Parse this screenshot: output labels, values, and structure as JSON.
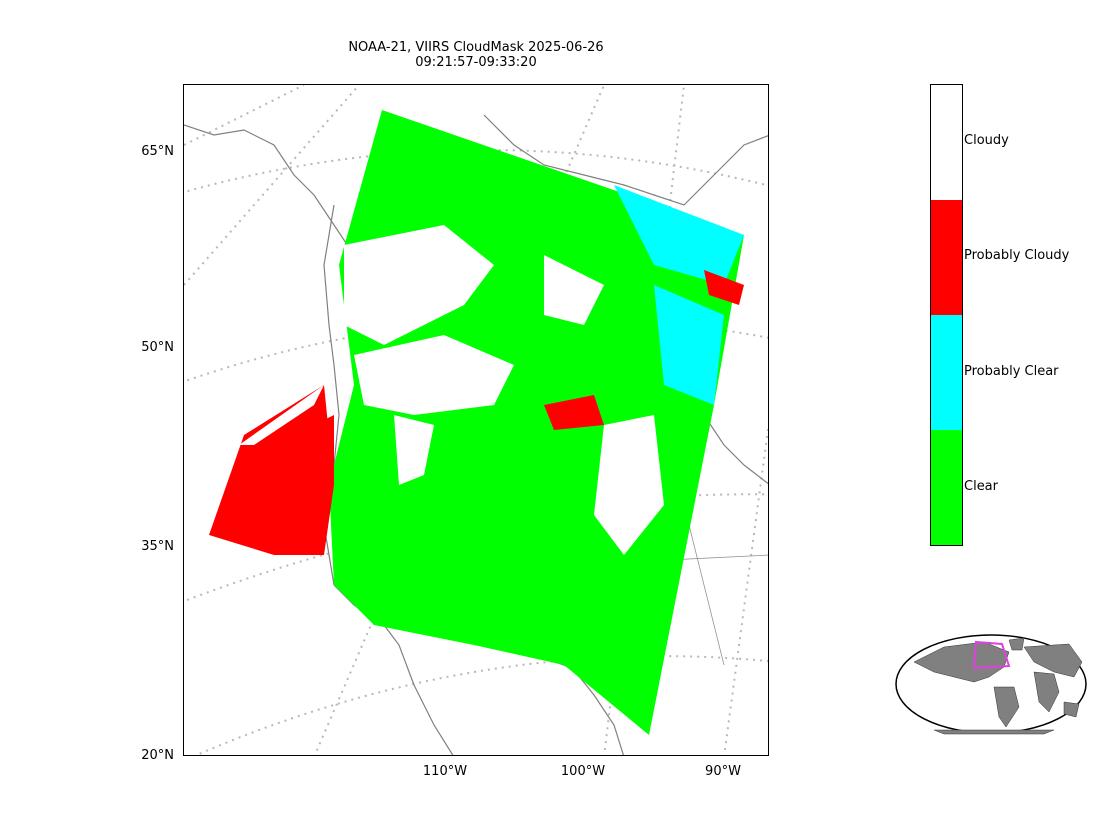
{
  "title": {
    "line1": "NOAA-21, VIIRS CloudMask 2025-06-26",
    "line2": "09:21:57-09:33:20"
  },
  "map": {
    "latitude_labels": [
      "65°N",
      "50°N",
      "35°N",
      "20°N"
    ],
    "longitude_labels": [
      "110°W",
      "100°W",
      "90°W"
    ],
    "graticule_style": "dotted-gray",
    "coastline_color": "#808080",
    "swath_description_colors": {
      "clear": "#00ff00",
      "probably_clear": "#00ffff",
      "probably_cloudy": "#ff0000",
      "cloudy": "#ffffff"
    }
  },
  "colorbar": {
    "categories": [
      "Cloudy",
      "Probably Cloudy",
      "Probably Clear",
      "Clear"
    ],
    "colors": [
      "#ffffff",
      "#ff0000",
      "#00ffff",
      "#00ff00"
    ]
  },
  "inset": {
    "land_color": "#808080",
    "ocean_color": "#ffffff",
    "swath_outline_color": "#e040e0"
  }
}
